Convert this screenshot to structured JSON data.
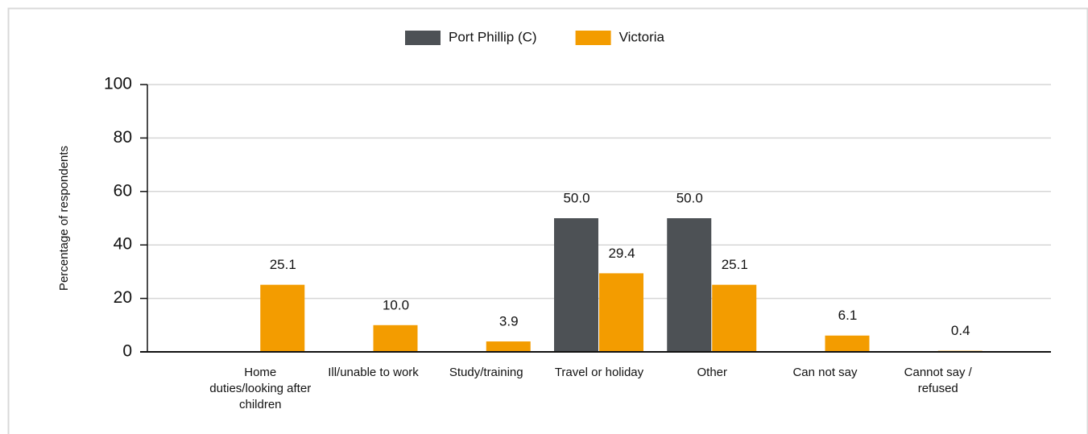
{
  "chart_data": {
    "type": "bar",
    "y_axis_label": "Percentage of respondents",
    "categories": [
      "Home duties/looking after children",
      "Ill/unable to work",
      "Study/training",
      "Travel or holiday",
      "Other",
      "Can not say",
      "Cannot say / refused"
    ],
    "series": [
      {
        "name": "Port Phillip (C)",
        "color": "#4d5155",
        "values": [
          null,
          null,
          null,
          50,
          50,
          null,
          null
        ],
        "value_labels": [
          null,
          null,
          null,
          "50.0",
          "50.0",
          null,
          null
        ]
      },
      {
        "name": "Victoria",
        "color": "#f39c00",
        "values": [
          25.1,
          10,
          3.9,
          29.4,
          25.1,
          6.1,
          0.4
        ],
        "value_labels": [
          "25.1",
          "10.0",
          "3.9",
          "29.4",
          "25.1",
          "6.1",
          "0.4"
        ]
      }
    ],
    "ylim": [
      0,
      100
    ],
    "yticks": [
      0,
      20,
      40,
      60,
      80,
      100
    ],
    "grid": true,
    "legend": "top"
  }
}
